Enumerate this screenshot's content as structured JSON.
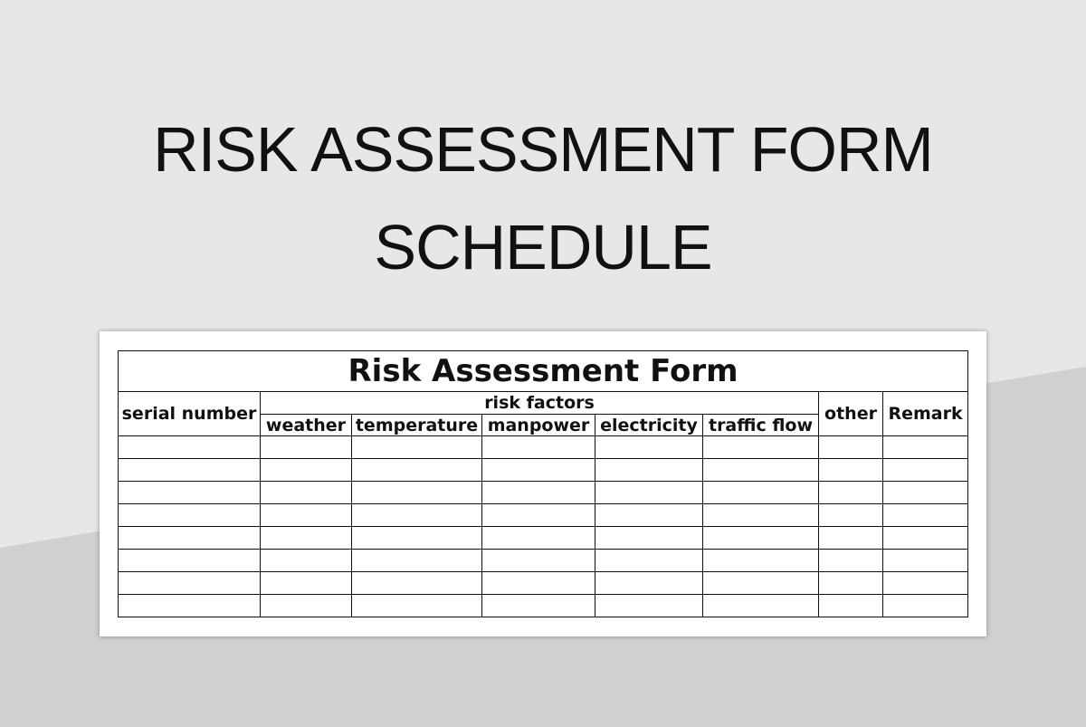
{
  "headline": {
    "line1": "RISK ASSESSMENT FORM",
    "line2": "SCHEDULE"
  },
  "form": {
    "title": "Risk Assessment Form",
    "headers": {
      "serial": "serial number",
      "group": "risk factors",
      "factors": [
        "weather",
        "temperature",
        "manpower",
        "electricity",
        "traffic flow"
      ],
      "other": "other",
      "remark": "Remark"
    },
    "empty_rows": 8
  },
  "colors": {
    "background_light": "#e7e7e7",
    "background_dark": "#d0d0d0",
    "line": "#111111"
  }
}
